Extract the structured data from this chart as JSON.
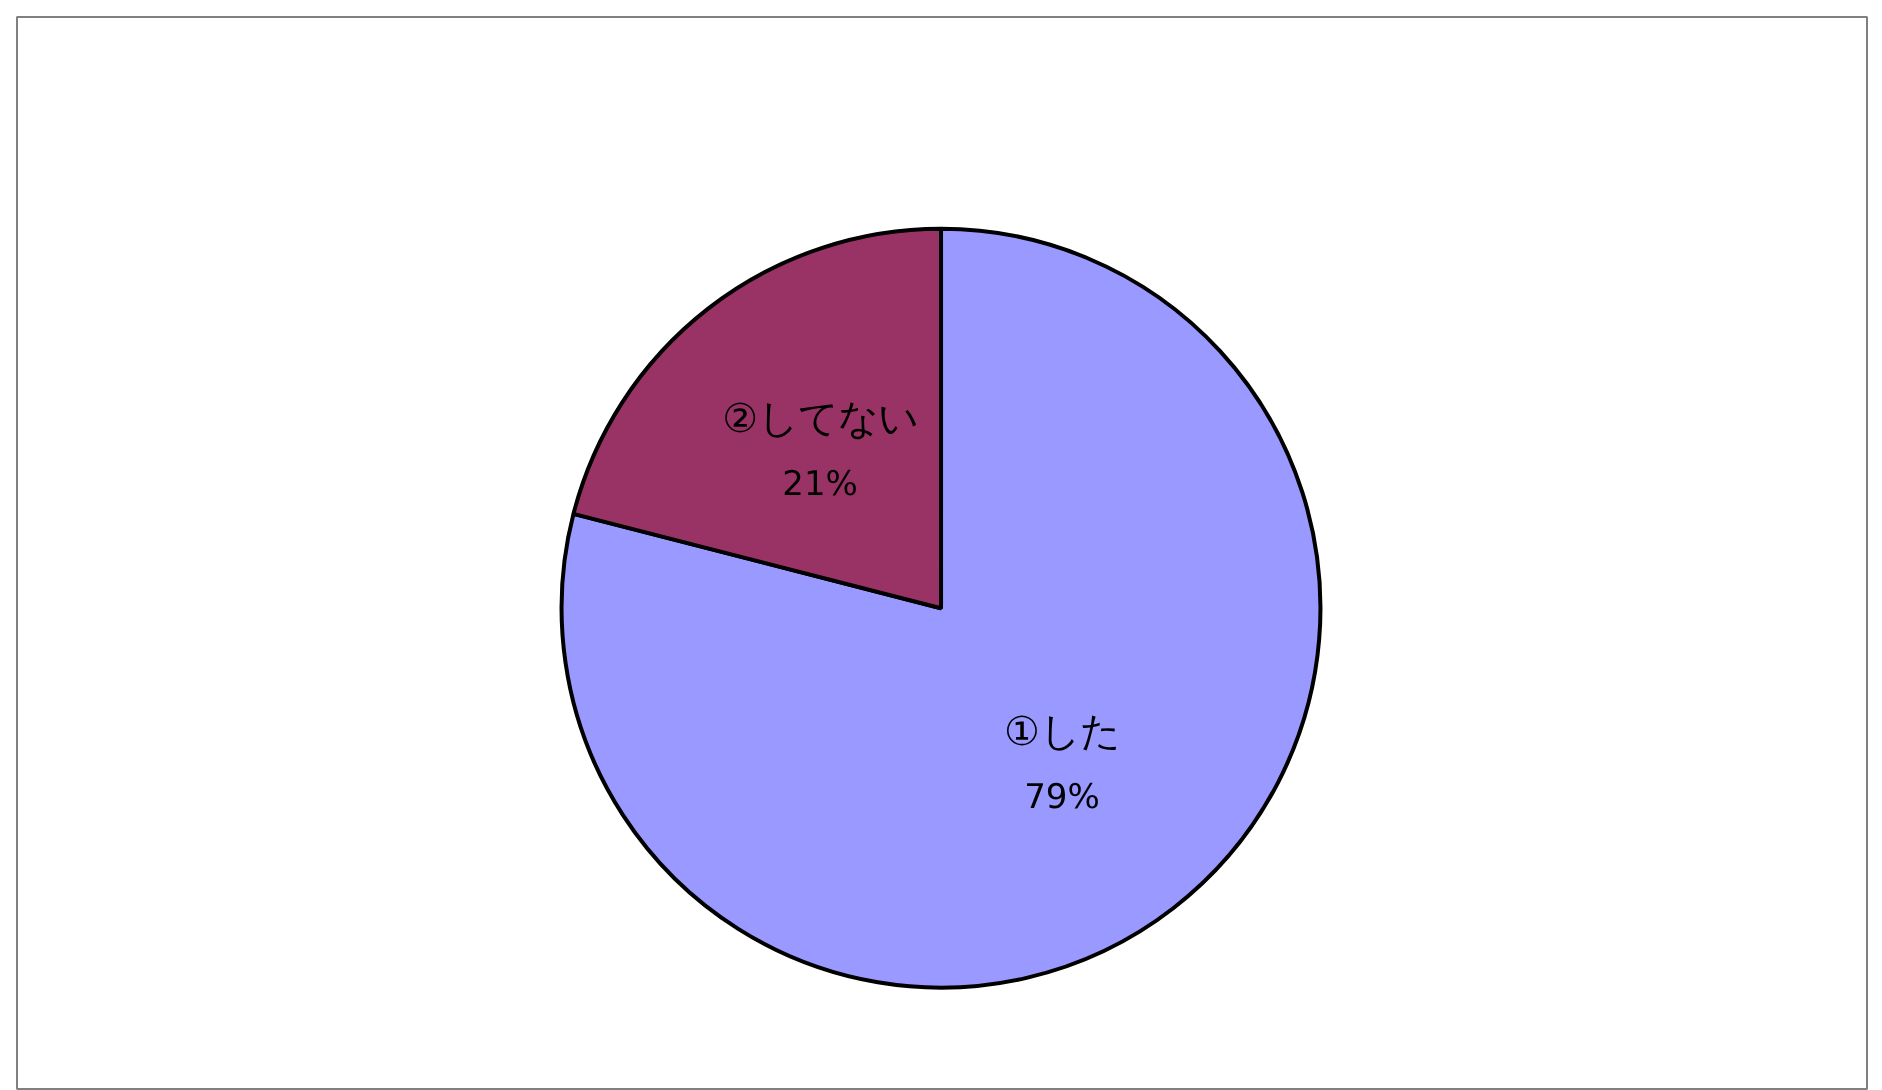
{
  "chart_data": {
    "type": "pie",
    "categories": [
      "①した",
      "②してない"
    ],
    "values": [
      79,
      21
    ],
    "colors": [
      "#9999ff",
      "#993366"
    ],
    "value_labels": [
      "79%",
      "21%"
    ]
  }
}
